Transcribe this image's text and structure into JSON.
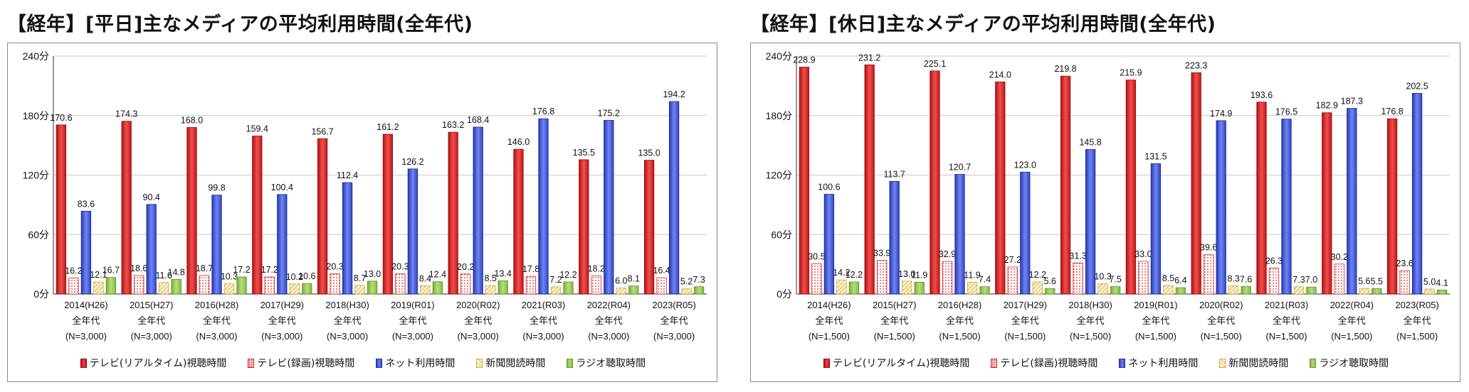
{
  "chart_data": [
    {
      "type": "bar",
      "title": "【経年】[平日]主なメディアの平均利用時間(全年代)",
      "ylim": [
        0,
        240
      ],
      "yticks": [
        "0分",
        "60分",
        "120分",
        "180分",
        "240分"
      ],
      "grid": true,
      "legend_position": "bottom",
      "categories": [
        {
          "year": "2014(H26)",
          "group": "全年代",
          "n": "(N=3,000)"
        },
        {
          "year": "2015(H27)",
          "group": "全年代",
          "n": "(N=3,000)"
        },
        {
          "year": "2016(H28)",
          "group": "全年代",
          "n": "(N=3,000)"
        },
        {
          "year": "2017(H29)",
          "group": "全年代",
          "n": "(N=3,000)"
        },
        {
          "year": "2018(H30)",
          "group": "全年代",
          "n": "(N=3,000)"
        },
        {
          "year": "2019(R01)",
          "group": "全年代",
          "n": "(N=3,000)"
        },
        {
          "year": "2020(R02)",
          "group": "全年代",
          "n": "(N=3,000)"
        },
        {
          "year": "2021(R03)",
          "group": "全年代",
          "n": "(N=3,000)"
        },
        {
          "year": "2022(R04)",
          "group": "全年代",
          "n": "(N=3,000)"
        },
        {
          "year": "2023(R05)",
          "group": "全年代",
          "n": "(N=3,000)"
        }
      ],
      "series": [
        {
          "name": "テレビ(リアルタイム)視聴時間",
          "values": [
            170.6,
            174.3,
            168.0,
            159.4,
            156.7,
            161.2,
            163.2,
            146.0,
            135.5,
            135.0
          ]
        },
        {
          "name": "テレビ(録画)視聴時間",
          "values": [
            16.2,
            18.6,
            18.7,
            17.2,
            20.3,
            20.3,
            20.2,
            17.8,
            18.2,
            16.4
          ]
        },
        {
          "name": "ネット利用時間",
          "values": [
            83.6,
            90.4,
            99.8,
            100.4,
            112.4,
            126.2,
            168.4,
            176.8,
            175.2,
            194.2
          ]
        },
        {
          "name": "新聞閲読時間",
          "values": [
            12.1,
            11.6,
            10.3,
            10.2,
            8.7,
            8.4,
            8.5,
            7.2,
            6.0,
            5.2
          ]
        },
        {
          "name": "ラジオ聴取時間",
          "values": [
            16.7,
            14.8,
            17.2,
            10.6,
            13.0,
            12.4,
            13.4,
            12.2,
            8.1,
            7.3
          ]
        }
      ]
    },
    {
      "type": "bar",
      "title": "【経年】[休日]主なメディアの平均利用時間(全年代)",
      "ylim": [
        0,
        240
      ],
      "yticks": [
        "0分",
        "60分",
        "120分",
        "180分",
        "240分"
      ],
      "grid": true,
      "legend_position": "bottom",
      "categories": [
        {
          "year": "2014(H26)",
          "group": "全年代",
          "n": "(N=1,500)"
        },
        {
          "year": "2015(H27)",
          "group": "全年代",
          "n": "(N=1,500)"
        },
        {
          "year": "2016(H28)",
          "group": "全年代",
          "n": "(N=1,500)"
        },
        {
          "year": "2017(H29)",
          "group": "全年代",
          "n": "(N=1,500)"
        },
        {
          "year": "2018(H30)",
          "group": "全年代",
          "n": "(N=1,500)"
        },
        {
          "year": "2019(R01)",
          "group": "全年代",
          "n": "(N=1,500)"
        },
        {
          "year": "2020(R02)",
          "group": "全年代",
          "n": "(N=1,500)"
        },
        {
          "year": "2021(R03)",
          "group": "全年代",
          "n": "(N=1,500)"
        },
        {
          "year": "2022(R04)",
          "group": "全年代",
          "n": "(N=1,500)"
        },
        {
          "year": "2023(R05)",
          "group": "全年代",
          "n": "(N=1,500)"
        }
      ],
      "series": [
        {
          "name": "テレビ(リアルタイム)視聴時間",
          "values": [
            228.9,
            231.2,
            225.1,
            214.0,
            219.8,
            215.9,
            223.3,
            193.6,
            182.9,
            176.8
          ]
        },
        {
          "name": "テレビ(録画)視聴時間",
          "values": [
            30.5,
            33.9,
            32.9,
            27.2,
            31.3,
            33.0,
            39.6,
            26.3,
            30.2,
            23.6
          ]
        },
        {
          "name": "ネット利用時間",
          "values": [
            100.6,
            113.7,
            120.7,
            123.0,
            145.8,
            131.5,
            174.9,
            176.5,
            187.3,
            202.5
          ]
        },
        {
          "name": "新聞閲読時間",
          "values": [
            14.2,
            13.0,
            11.9,
            12.2,
            10.3,
            8.5,
            8.3,
            7.3,
            5.6,
            5.0
          ]
        },
        {
          "name": "ラジオ聴取時間",
          "values": [
            12.2,
            11.9,
            7.4,
            5.6,
            7.5,
            6.4,
            7.6,
            7.0,
            5.5,
            4.1
          ]
        }
      ]
    }
  ]
}
